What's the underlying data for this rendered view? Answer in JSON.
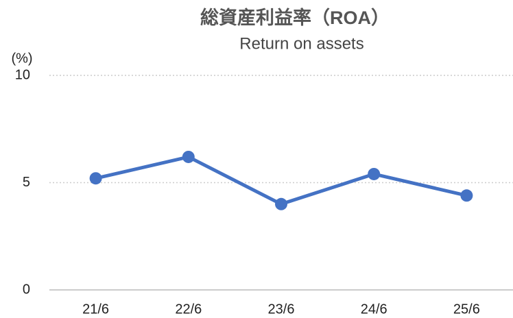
{
  "chart_data": {
    "type": "line",
    "title": "総資産利益率（ROA）",
    "subtitle": "Return on assets",
    "ylabel": "(%)",
    "categories": [
      "21/6",
      "22/6",
      "23/6",
      "24/6",
      "25/6"
    ],
    "series": [
      {
        "name": "ROA",
        "color": "#4472c4",
        "values": [
          5.2,
          6.2,
          4.0,
          5.4,
          4.4
        ]
      }
    ],
    "ylim": [
      0,
      10
    ],
    "yticks": [
      0,
      5,
      10
    ],
    "grid": true
  }
}
